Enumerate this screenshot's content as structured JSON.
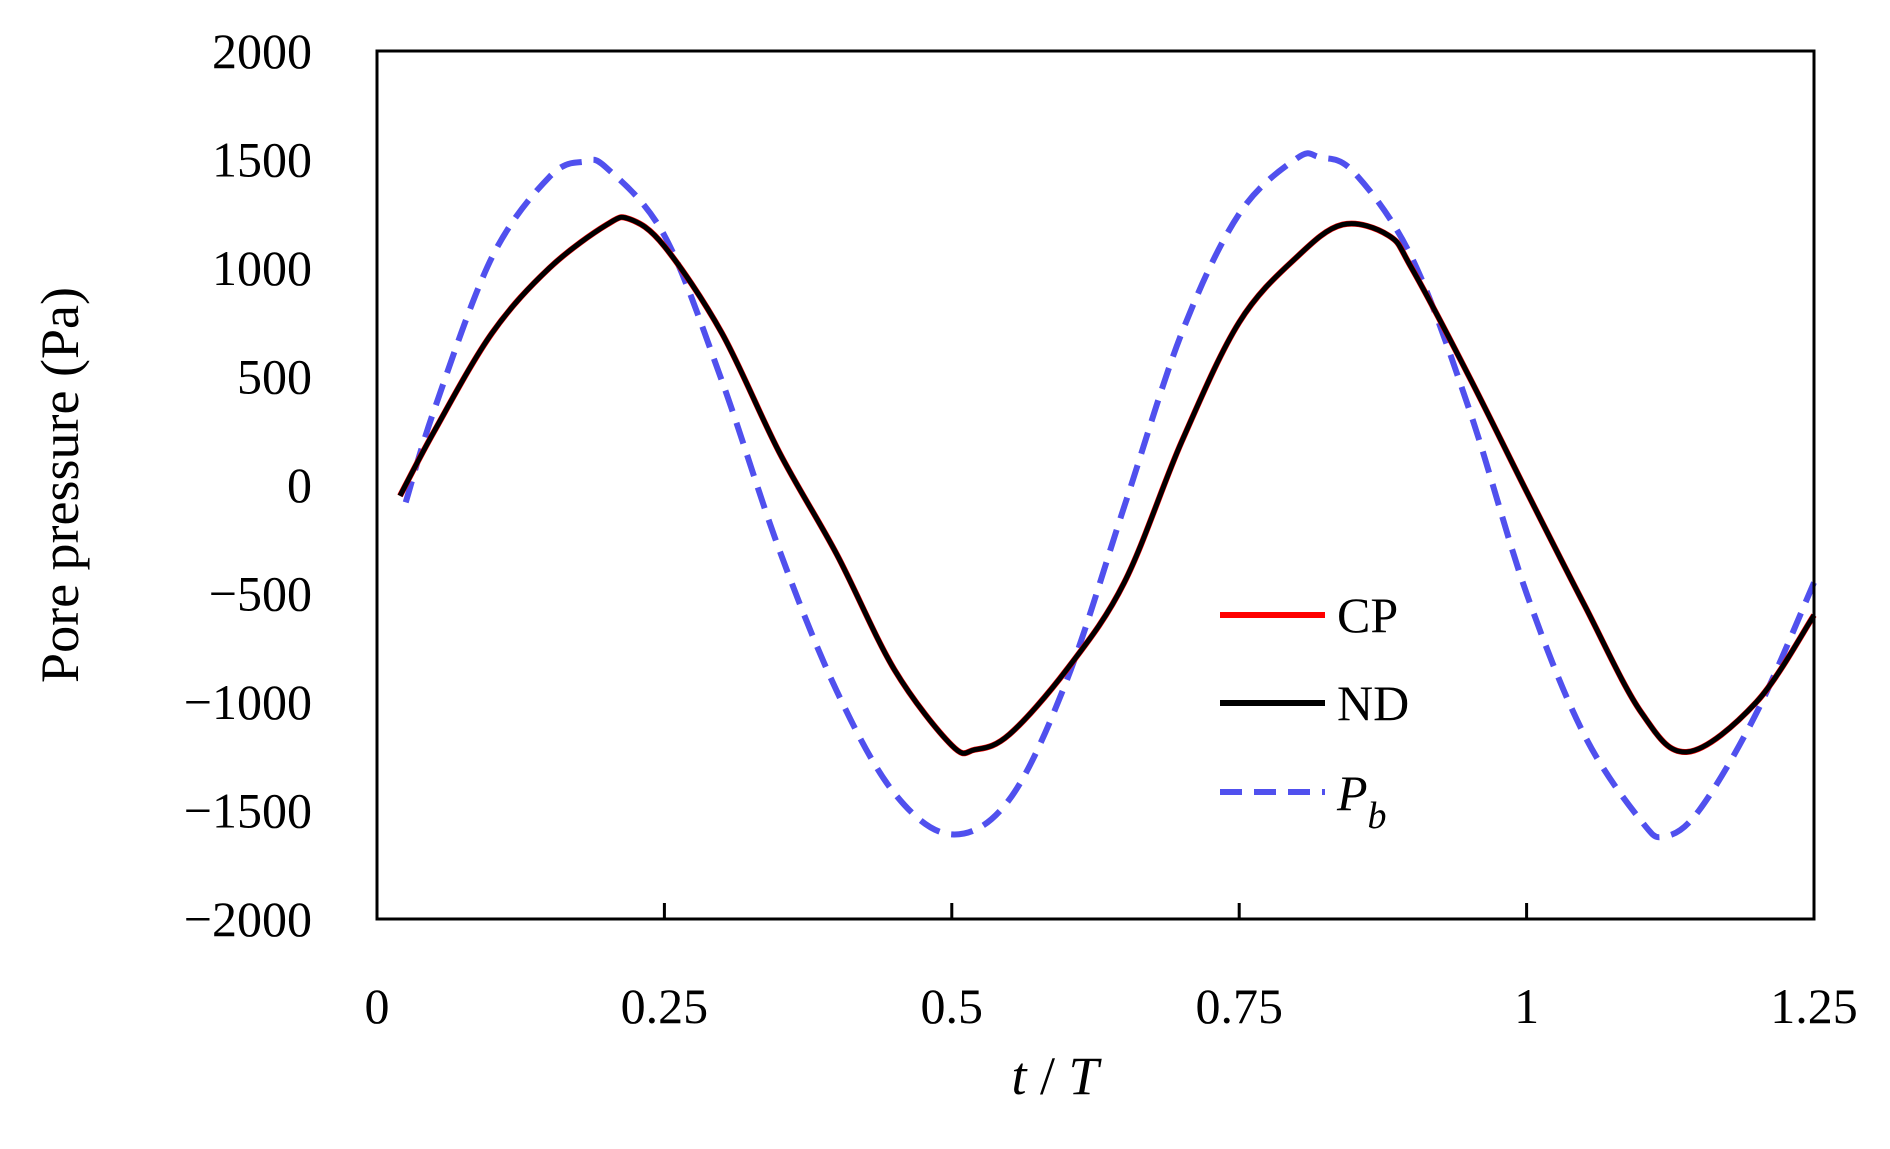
{
  "chart_data": {
    "type": "line",
    "title": "",
    "xlabel": {
      "var1": "t",
      "sep": " / ",
      "var2": "T"
    },
    "ylabel": "Pore pressure (Pa)",
    "xlim": [
      0,
      1.25
    ],
    "ylim": [
      -2000,
      2000
    ],
    "x_ticks": [
      0,
      0.25,
      0.5,
      0.75,
      1,
      1.25
    ],
    "x_tick_labels": [
      "0",
      "0.25",
      "0.5",
      "0.75",
      "1",
      "1.25"
    ],
    "y_ticks": [
      2000,
      1500,
      1000,
      500,
      0,
      -500,
      -1000,
      -1500,
      -2000
    ],
    "y_tick_labels": [
      "2000",
      "1500",
      "1000",
      "500",
      "0",
      "−500",
      "−1000",
      "−1500",
      "−2000"
    ],
    "grid": false,
    "legend_position": "lower-right",
    "series": [
      {
        "name": "CP",
        "color": "#ff0000",
        "dash": "solid",
        "x": [
          0.02,
          0.05,
          0.1,
          0.15,
          0.2,
          0.22,
          0.25,
          0.3,
          0.35,
          0.4,
          0.45,
          0.5,
          0.52,
          0.55,
          0.6,
          0.65,
          0.7,
          0.75,
          0.8,
          0.84,
          0.88,
          0.9,
          0.95,
          1.0,
          1.05,
          1.1,
          1.14,
          1.2,
          1.25
        ],
        "values": [
          -50,
          250,
          700,
          1000,
          1200,
          1225,
          1100,
          700,
          150,
          -320,
          -850,
          -1200,
          -1220,
          -1150,
          -850,
          -450,
          200,
          750,
          1050,
          1200,
          1150,
          1000,
          500,
          -30,
          -550,
          -1050,
          -1230,
          -1000,
          -600
        ]
      },
      {
        "name": "ND",
        "color": "#000000",
        "dash": "solid",
        "x": [
          0.02,
          0.05,
          0.1,
          0.15,
          0.2,
          0.22,
          0.25,
          0.3,
          0.35,
          0.4,
          0.45,
          0.5,
          0.52,
          0.55,
          0.6,
          0.65,
          0.7,
          0.75,
          0.8,
          0.84,
          0.88,
          0.9,
          0.95,
          1.0,
          1.05,
          1.1,
          1.14,
          1.2,
          1.25
        ],
        "values": [
          -50,
          250,
          700,
          1000,
          1200,
          1225,
          1100,
          700,
          150,
          -320,
          -850,
          -1200,
          -1220,
          -1150,
          -850,
          -450,
          200,
          750,
          1050,
          1200,
          1150,
          1000,
          500,
          -30,
          -550,
          -1050,
          -1230,
          -1000,
          -600
        ]
      },
      {
        "name": "P",
        "subscript": "b",
        "color": "#5050ee",
        "dash": "dashed",
        "x": [
          0.025,
          0.05,
          0.1,
          0.15,
          0.18,
          0.2,
          0.25,
          0.3,
          0.35,
          0.4,
          0.45,
          0.5,
          0.55,
          0.6,
          0.65,
          0.7,
          0.75,
          0.8,
          0.82,
          0.85,
          0.9,
          0.95,
          1.0,
          1.05,
          1.1,
          1.12,
          1.15,
          1.2,
          1.25
        ],
        "values": [
          -80,
          350,
          1050,
          1420,
          1490,
          1460,
          1150,
          480,
          -300,
          -950,
          -1420,
          -1610,
          -1450,
          -900,
          -100,
          700,
          1250,
          1505,
          1510,
          1440,
          1050,
          350,
          -500,
          -1150,
          -1550,
          -1620,
          -1500,
          -1050,
          -450
        ]
      }
    ]
  }
}
